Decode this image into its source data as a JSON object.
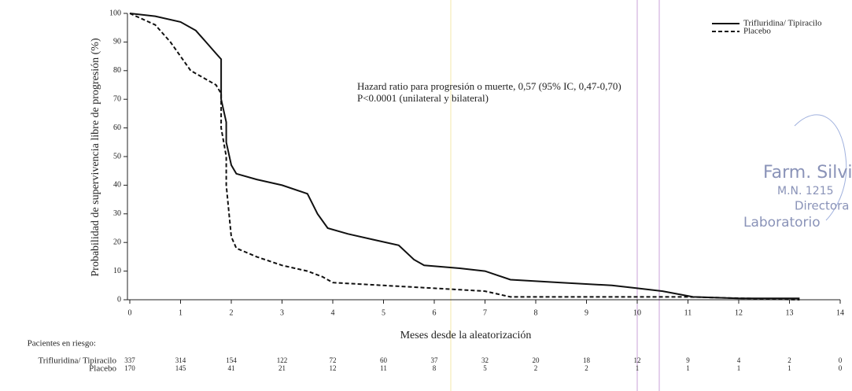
{
  "chart_data": {
    "type": "line",
    "step": true,
    "ylabel": "Probabilidad de supervivencia libre de progresión (%)",
    "xlabel": "Meses desde la aleatorización",
    "xlim": [
      0,
      14
    ],
    "ylim": [
      0,
      100
    ],
    "xticks": [
      0,
      1,
      2,
      3,
      4,
      5,
      6,
      7,
      8,
      9,
      10,
      11,
      12,
      13,
      14
    ],
    "yticks": [
      0,
      10,
      20,
      30,
      40,
      50,
      60,
      70,
      80,
      90,
      100
    ],
    "legend": "top-right",
    "annotations": [
      "Hazard ratio para progresión o muerte, 0,57 (95% IC, 0,47-0,70)",
      "P<0.0001 (unilateral y bilateral)"
    ],
    "series": [
      {
        "name": "Trifluridina/ Tipiracilo",
        "color": "#111111",
        "line_style": "solid",
        "x": [
          0,
          0.5,
          1,
          1.3,
          1.5,
          1.7,
          1.8,
          1.8,
          1.9,
          1.9,
          2.0,
          2.1,
          2.5,
          3.0,
          3.5,
          3.7,
          3.9,
          4.3,
          4.8,
          5.3,
          5.6,
          5.8,
          6.5,
          7.0,
          7.5,
          8.5,
          9.5,
          10.0,
          10.5,
          11.1,
          12.0,
          13.2
        ],
        "values": [
          100,
          99,
          97,
          94,
          90,
          86,
          84,
          70,
          62,
          55,
          47,
          44,
          42,
          40,
          37,
          30,
          25,
          23,
          21,
          19,
          14,
          12,
          11,
          10,
          7,
          6,
          5,
          4,
          3,
          1,
          0.5,
          0.5
        ]
      },
      {
        "name": "Placebo",
        "color": "#111111",
        "line_style": "dashed",
        "x": [
          0,
          0.5,
          0.8,
          1.0,
          1.2,
          1.5,
          1.7,
          1.8,
          1.8,
          1.9,
          1.9,
          2.0,
          2.1,
          2.5,
          3.0,
          3.5,
          3.8,
          4.0,
          5.0,
          6.0,
          7.0,
          7.5,
          10.0,
          11.0,
          13.2
        ],
        "values": [
          100,
          96,
          90,
          85,
          80,
          77,
          75,
          72,
          60,
          50,
          40,
          22,
          18,
          15,
          12,
          10,
          8,
          6,
          5,
          4,
          3,
          1,
          1,
          1,
          0
        ]
      }
    ],
    "risk_table": {
      "title": "Pacientes en riesgo:",
      "rows": [
        {
          "name": "Trifluridina/ Tipiracilo",
          "values": [
            337,
            314,
            154,
            122,
            72,
            60,
            37,
            32,
            20,
            18,
            12,
            9,
            4,
            2,
            0
          ]
        },
        {
          "name": "Placebo",
          "values": [
            170,
            145,
            41,
            21,
            12,
            11,
            8,
            5,
            2,
            2,
            1,
            1,
            1,
            1,
            0
          ]
        }
      ]
    }
  },
  "stamp": {
    "lines": [
      "Farm. Silvi",
      "M.N. 1215",
      "Directora",
      "Laboratorio"
    ]
  }
}
